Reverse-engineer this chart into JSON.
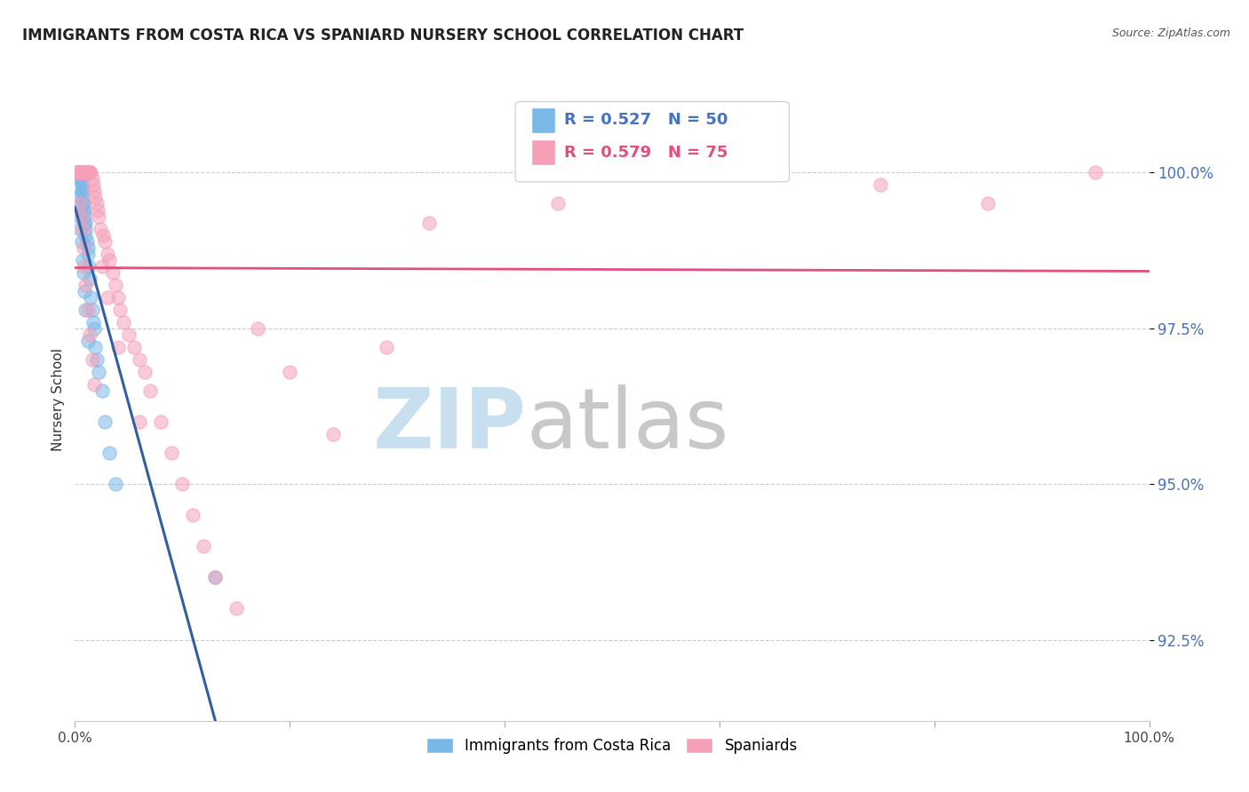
{
  "title": "IMMIGRANTS FROM COSTA RICA VS SPANIARD NURSERY SCHOOL CORRELATION CHART",
  "source": "Source: ZipAtlas.com",
  "ylabel": "Nursery School",
  "yticks": [
    92.5,
    95.0,
    97.5,
    100.0
  ],
  "ytick_labels": [
    "92.5%",
    "95.0%",
    "97.5%",
    "100.0%"
  ],
  "xlim": [
    0.0,
    1.0
  ],
  "ylim": [
    91.2,
    101.5
  ],
  "legend_label1": "Immigrants from Costa Rica",
  "legend_label2": "Spaniards",
  "r1": 0.527,
  "n1": 50,
  "r2": 0.579,
  "n2": 75,
  "color1": "#7ab8e8",
  "color2": "#f5a0b8",
  "trendline1_color": "#3060a0",
  "trendline2_color": "#e0507a",
  "background_color": "#ffffff",
  "title_fontsize": 12,
  "source_fontsize": 9,
  "blue_x": [
    0.002,
    0.003,
    0.003,
    0.004,
    0.004,
    0.004,
    0.005,
    0.005,
    0.005,
    0.006,
    0.006,
    0.006,
    0.006,
    0.007,
    0.007,
    0.007,
    0.008,
    0.008,
    0.009,
    0.009,
    0.009,
    0.01,
    0.01,
    0.01,
    0.011,
    0.012,
    0.012,
    0.013,
    0.014,
    0.015,
    0.016,
    0.017,
    0.018,
    0.019,
    0.02,
    0.022,
    0.025,
    0.028,
    0.032,
    0.038,
    0.003,
    0.004,
    0.005,
    0.006,
    0.007,
    0.008,
    0.009,
    0.01,
    0.012,
    0.13
  ],
  "blue_y": [
    100.0,
    100.0,
    100.0,
    100.0,
    100.0,
    100.0,
    100.0,
    100.0,
    99.9,
    99.9,
    99.8,
    99.7,
    99.8,
    99.6,
    99.7,
    99.5,
    99.4,
    99.5,
    99.3,
    99.2,
    99.4,
    99.1,
    99.0,
    99.2,
    98.9,
    98.8,
    98.7,
    98.5,
    98.3,
    98.0,
    97.8,
    97.6,
    97.5,
    97.2,
    97.0,
    96.8,
    96.5,
    96.0,
    95.5,
    95.0,
    99.6,
    99.3,
    99.1,
    98.9,
    98.6,
    98.4,
    98.1,
    97.8,
    97.3,
    93.5
  ],
  "pink_x": [
    0.002,
    0.003,
    0.004,
    0.005,
    0.006,
    0.006,
    0.007,
    0.007,
    0.008,
    0.009,
    0.01,
    0.01,
    0.011,
    0.012,
    0.013,
    0.014,
    0.015,
    0.016,
    0.017,
    0.018,
    0.019,
    0.02,
    0.021,
    0.022,
    0.024,
    0.026,
    0.028,
    0.03,
    0.032,
    0.035,
    0.038,
    0.04,
    0.042,
    0.045,
    0.05,
    0.055,
    0.06,
    0.065,
    0.07,
    0.08,
    0.09,
    0.1,
    0.11,
    0.12,
    0.13,
    0.15,
    0.17,
    0.2,
    0.24,
    0.29,
    0.005,
    0.006,
    0.007,
    0.008,
    0.009,
    0.01,
    0.012,
    0.014,
    0.016,
    0.018,
    0.025,
    0.03,
    0.04,
    0.06,
    0.33,
    0.45,
    0.62,
    0.75,
    0.85,
    0.95,
    0.003,
    0.004,
    0.005,
    0.006,
    0.007
  ],
  "pink_y": [
    100.0,
    100.0,
    100.0,
    100.0,
    100.0,
    100.0,
    100.0,
    100.0,
    100.0,
    100.0,
    100.0,
    100.0,
    100.0,
    100.0,
    100.0,
    100.0,
    100.0,
    99.9,
    99.8,
    99.7,
    99.6,
    99.5,
    99.4,
    99.3,
    99.1,
    99.0,
    98.9,
    98.7,
    98.6,
    98.4,
    98.2,
    98.0,
    97.8,
    97.6,
    97.4,
    97.2,
    97.0,
    96.8,
    96.5,
    96.0,
    95.5,
    95.0,
    94.5,
    94.0,
    93.5,
    93.0,
    97.5,
    96.8,
    95.8,
    97.2,
    99.5,
    99.3,
    99.1,
    98.8,
    98.5,
    98.2,
    97.8,
    97.4,
    97.0,
    96.6,
    98.5,
    98.0,
    97.2,
    96.0,
    99.2,
    99.5,
    100.0,
    99.8,
    99.5,
    100.0,
    100.0,
    100.0,
    100.0,
    100.0,
    100.0
  ],
  "watermark_zip_color": "#c8dff0",
  "watermark_atlas_color": "#c8c8c8"
}
